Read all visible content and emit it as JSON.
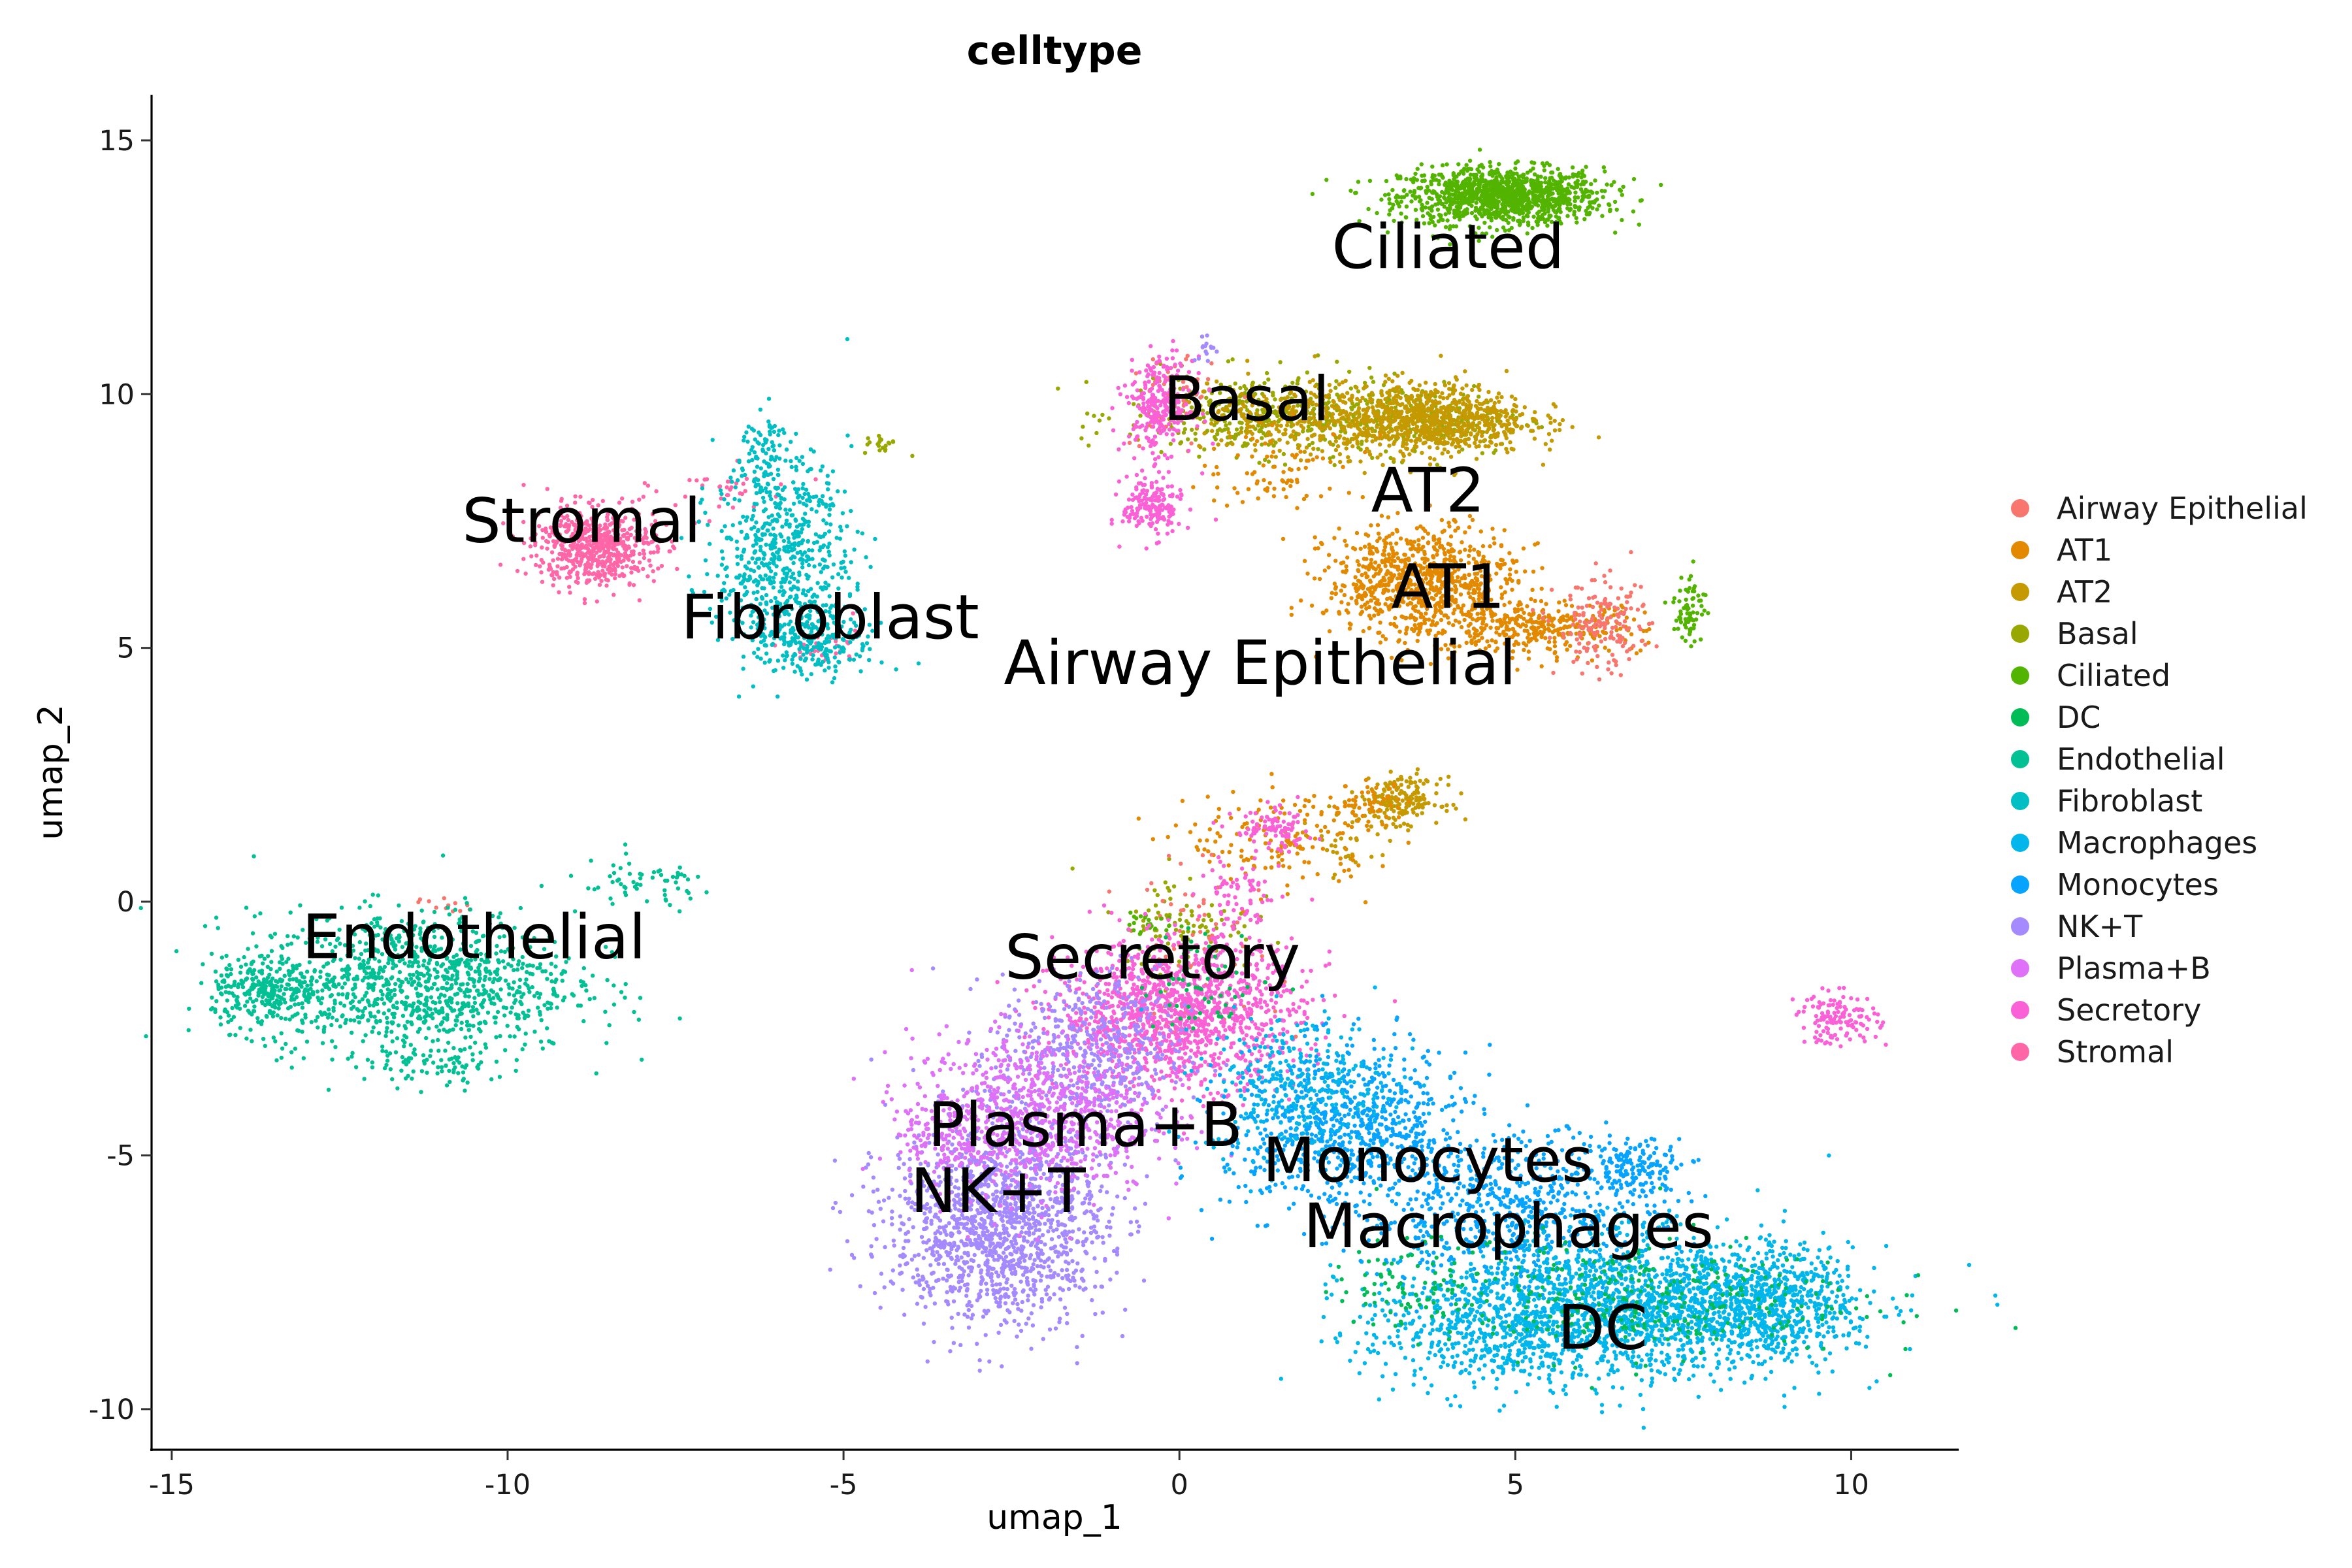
{
  "chart_data": {
    "type": "scatter",
    "title": "celltype",
    "xlabel": "umap_1",
    "ylabel": "umap_2",
    "xlim": [
      -15.3,
      11.6
    ],
    "ylim": [
      -10.8,
      15.9
    ],
    "x_ticks": [
      -15,
      -10,
      -5,
      0,
      5,
      10
    ],
    "y_ticks": [
      -10,
      -5,
      0,
      5,
      10,
      15
    ],
    "x_tick_labels": [
      "-15",
      "-10",
      "-5",
      "0",
      "5",
      "10"
    ],
    "y_tick_labels": [
      "-10",
      "-5",
      "0",
      "5",
      "10",
      "15"
    ],
    "grid": false,
    "legend_position": "right",
    "legend": [
      {
        "name": "Airway Epithelial",
        "color": "#F8766D"
      },
      {
        "name": "AT1",
        "color": "#E38900"
      },
      {
        "name": "AT2",
        "color": "#C49A00"
      },
      {
        "name": "Basal",
        "color": "#99A800"
      },
      {
        "name": "Ciliated",
        "color": "#53B400"
      },
      {
        "name": "DC",
        "color": "#00BC56"
      },
      {
        "name": "Endothelial",
        "color": "#00C094"
      },
      {
        "name": "Fibroblast",
        "color": "#00BFC4"
      },
      {
        "name": "Macrophages",
        "color": "#00B6EB"
      },
      {
        "name": "Monocytes",
        "color": "#06A4FF"
      },
      {
        "name": "NK+T",
        "color": "#A58AFF"
      },
      {
        "name": "Plasma+B",
        "color": "#DF70F8"
      },
      {
        "name": "Secretory",
        "color": "#FB61D7"
      },
      {
        "name": "Stromal",
        "color": "#FF66A8"
      }
    ],
    "cluster_labels": [
      {
        "text": "Ciliated",
        "x": 4.0,
        "y": 12.9
      },
      {
        "text": "Basal",
        "x": 1.0,
        "y": 9.9
      },
      {
        "text": "AT2",
        "x": 3.7,
        "y": 8.1
      },
      {
        "text": "Stromal",
        "x": -8.9,
        "y": 7.5
      },
      {
        "text": "AT1",
        "x": 4.0,
        "y": 6.2
      },
      {
        "text": "Fibroblast",
        "x": -5.2,
        "y": 5.6
      },
      {
        "text": "Airway Epithelial",
        "x": 1.2,
        "y": 4.7
      },
      {
        "text": "Endothelial",
        "x": -10.5,
        "y": -0.7
      },
      {
        "text": "Secretory",
        "x": -0.4,
        "y": -1.1
      },
      {
        "text": "Plasma+B",
        "x": -1.4,
        "y": -4.4
      },
      {
        "text": "Monocytes",
        "x": 3.7,
        "y": -5.1
      },
      {
        "text": "NK+T",
        "x": -2.7,
        "y": -5.7
      },
      {
        "text": "Macrophages",
        "x": 4.9,
        "y": -6.4
      },
      {
        "text": "DC",
        "x": 6.3,
        "y": -8.4
      }
    ],
    "series": [
      {
        "name": "Ciliated",
        "color": "#53B400",
        "clusters": [
          {
            "cx": 4.8,
            "cy": 13.9,
            "sx": 0.75,
            "sy": 0.28,
            "n": 1200
          }
        ]
      },
      {
        "name": "Basal",
        "color": "#99A800",
        "clusters": [
          {
            "cx": 1.2,
            "cy": 9.6,
            "sx": 1.0,
            "sy": 0.4,
            "n": 380
          },
          {
            "cx": 3.6,
            "cy": 9.5,
            "sx": 0.8,
            "sy": 0.35,
            "n": 200
          },
          {
            "cx": -4.4,
            "cy": 9.0,
            "sx": 0.15,
            "sy": 0.1,
            "n": 20
          },
          {
            "cx": 0.1,
            "cy": -0.4,
            "sx": 0.5,
            "sy": 0.5,
            "n": 90
          }
        ]
      },
      {
        "name": "AT2",
        "color": "#C49A00",
        "clusters": [
          {
            "cx": 3.6,
            "cy": 9.5,
            "sx": 0.8,
            "sy": 0.35,
            "n": 950
          },
          {
            "cx": 1.3,
            "cy": 9.5,
            "sx": 0.7,
            "sy": 0.35,
            "n": 180
          },
          {
            "cx": 3.3,
            "cy": 2.0,
            "sx": 0.3,
            "sy": 0.22,
            "n": 180
          },
          {
            "cx": 2.5,
            "cy": 1.2,
            "sx": 0.4,
            "sy": 0.4,
            "n": 40
          }
        ]
      },
      {
        "name": "AT1",
        "color": "#E38900",
        "clusters": [
          {
            "cx": 3.6,
            "cy": 6.3,
            "sx": 0.7,
            "sy": 0.55,
            "n": 850
          },
          {
            "cx": 5.3,
            "cy": 5.4,
            "sx": 0.8,
            "sy": 0.25,
            "n": 320
          },
          {
            "cx": 1.5,
            "cy": 8.5,
            "sx": 0.6,
            "sy": 0.4,
            "n": 80
          },
          {
            "cx": 1.5,
            "cy": 1.2,
            "sx": 0.7,
            "sy": 0.5,
            "n": 150
          },
          {
            "cx": 2.8,
            "cy": 1.9,
            "sx": 0.3,
            "sy": 0.2,
            "n": 60
          }
        ]
      },
      {
        "name": "Airway Epithelial",
        "color": "#F8766D",
        "clusters": [
          {
            "cx": 6.3,
            "cy": 5.4,
            "sx": 0.35,
            "sy": 0.45,
            "n": 170
          },
          {
            "cx": -0.1,
            "cy": 9.9,
            "sx": 0.3,
            "sy": 0.5,
            "n": 60
          },
          {
            "cx": 0.3,
            "cy": -1.0,
            "sx": 0.6,
            "sy": 0.8,
            "n": 80
          },
          {
            "cx": -11.0,
            "cy": -0.1,
            "sx": 0.2,
            "sy": 0.1,
            "n": 12
          }
        ]
      },
      {
        "name": "Ciliated",
        "color": "#53B400",
        "clusters": [
          {
            "cx": 7.6,
            "cy": 5.8,
            "sx": 0.12,
            "sy": 0.35,
            "n": 70
          },
          {
            "cx": -0.4,
            "cy": -0.4,
            "sx": 0.2,
            "sy": 0.15,
            "n": 25
          }
        ]
      },
      {
        "name": "Stromal",
        "color": "#FF66A8",
        "clusters": [
          {
            "cx": -8.7,
            "cy": 7.0,
            "sx": 0.45,
            "sy": 0.38,
            "n": 620
          },
          {
            "cx": -6.8,
            "cy": 8.1,
            "sx": 0.5,
            "sy": 0.25,
            "n": 40
          },
          {
            "cx": -5.3,
            "cy": 5.0,
            "sx": 0.3,
            "sy": 0.25,
            "n": 30
          }
        ]
      },
      {
        "name": "Fibroblast",
        "color": "#00BFC4",
        "clusters": [
          {
            "cx": -5.9,
            "cy": 6.8,
            "sx": 0.5,
            "sy": 1.0,
            "n": 650
          },
          {
            "cx": -5.4,
            "cy": 5.1,
            "sx": 0.5,
            "sy": 0.3,
            "n": 200
          },
          {
            "cx": -6.2,
            "cy": 8.7,
            "sx": 0.15,
            "sy": 0.5,
            "n": 80
          }
        ]
      },
      {
        "name": "Endothelial",
        "color": "#00C094",
        "clusters": [
          {
            "cx": -11.4,
            "cy": -1.6,
            "sx": 1.2,
            "sy": 0.7,
            "n": 1100
          },
          {
            "cx": -13.6,
            "cy": -1.8,
            "sx": 0.4,
            "sy": 0.35,
            "n": 250
          },
          {
            "cx": -8.0,
            "cy": 0.3,
            "sx": 0.6,
            "sy": 0.25,
            "n": 60
          },
          {
            "cx": -11.0,
            "cy": -3.2,
            "sx": 0.5,
            "sy": 0.2,
            "n": 70
          }
        ]
      },
      {
        "name": "Secretory",
        "color": "#FB61D7",
        "clusters": [
          {
            "cx": -0.3,
            "cy": 9.8,
            "sx": 0.25,
            "sy": 0.45,
            "n": 280
          },
          {
            "cx": -0.4,
            "cy": 7.8,
            "sx": 0.22,
            "sy": 0.3,
            "n": 180
          },
          {
            "cx": 0.0,
            "cy": -2.2,
            "sx": 0.9,
            "sy": 0.7,
            "n": 1300
          },
          {
            "cx": 1.4,
            "cy": 1.4,
            "sx": 0.3,
            "sy": 0.2,
            "n": 90
          },
          {
            "cx": 0.9,
            "cy": 0.0,
            "sx": 0.3,
            "sy": 0.5,
            "n": 80
          },
          {
            "cx": 9.8,
            "cy": -2.3,
            "sx": 0.3,
            "sy": 0.25,
            "n": 130
          }
        ]
      },
      {
        "name": "NK+T",
        "color": "#A58AFF",
        "clusters": [
          {
            "cx": -2.7,
            "cy": -6.3,
            "sx": 0.8,
            "sy": 1.0,
            "n": 1500
          },
          {
            "cx": -1.3,
            "cy": -3.0,
            "sx": 0.7,
            "sy": 0.8,
            "n": 500
          },
          {
            "cx": 0.4,
            "cy": 10.9,
            "sx": 0.1,
            "sy": 0.15,
            "n": 15
          }
        ]
      },
      {
        "name": "Plasma+B",
        "color": "#DF70F8",
        "clusters": [
          {
            "cx": -2.2,
            "cy": -4.2,
            "sx": 0.9,
            "sy": 0.8,
            "n": 850
          },
          {
            "cx": -3.6,
            "cy": -4.8,
            "sx": 0.3,
            "sy": 0.3,
            "n": 80
          }
        ]
      },
      {
        "name": "Monocytes",
        "color": "#06A4FF",
        "clusters": [
          {
            "cx": 2.5,
            "cy": -4.5,
            "sx": 0.9,
            "sy": 0.8,
            "n": 800
          },
          {
            "cx": 5.0,
            "cy": -6.2,
            "sx": 1.1,
            "sy": 0.8,
            "n": 700
          },
          {
            "cx": 6.8,
            "cy": -5.2,
            "sx": 0.4,
            "sy": 0.3,
            "n": 150
          }
        ]
      },
      {
        "name": "Macrophages",
        "color": "#00B6EB",
        "clusters": [
          {
            "cx": 6.8,
            "cy": -8.0,
            "sx": 1.5,
            "sy": 0.7,
            "n": 1700
          },
          {
            "cx": 8.8,
            "cy": -7.9,
            "sx": 0.6,
            "sy": 0.5,
            "n": 500
          },
          {
            "cx": 4.5,
            "cy": -8.5,
            "sx": 0.9,
            "sy": 0.6,
            "n": 400
          },
          {
            "cx": 1.8,
            "cy": -3.6,
            "sx": 0.7,
            "sy": 0.7,
            "n": 300
          }
        ]
      },
      {
        "name": "DC",
        "color": "#00BC56",
        "clusters": [
          {
            "cx": 6.5,
            "cy": -7.8,
            "sx": 1.8,
            "sy": 0.6,
            "n": 320
          },
          {
            "cx": 3.5,
            "cy": -7.5,
            "sx": 0.6,
            "sy": 0.4,
            "n": 60
          },
          {
            "cx": 0.4,
            "cy": -1.6,
            "sx": 0.5,
            "sy": 0.5,
            "n": 60
          }
        ]
      }
    ]
  }
}
